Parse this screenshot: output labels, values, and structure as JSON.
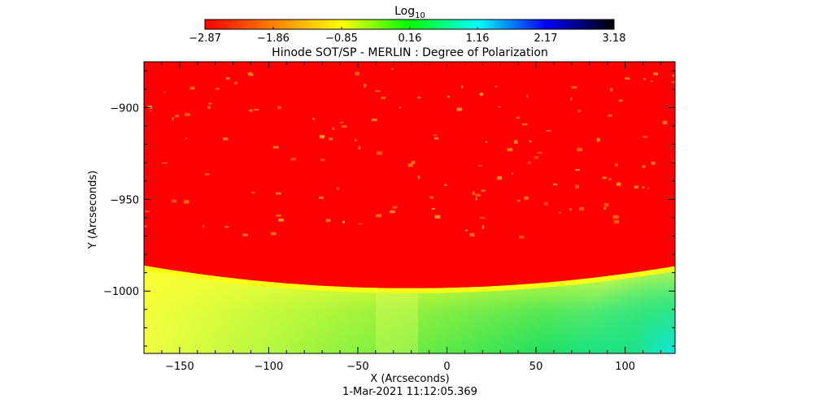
{
  "chart_data": {
    "type": "heatmap",
    "title": "Hinode SOT/SP - MERLIN : Degree of Polarization",
    "xlabel": "X (Arcseconds)",
    "ylabel": "Y (Arcseconds)",
    "timestamp": "1-Mar-2021 11:12:05.369",
    "xlim": [
      -170,
      128
    ],
    "ylim": [
      -1034,
      -875
    ],
    "x_ticks": [
      -150,
      -100,
      -50,
      0,
      50,
      100
    ],
    "x_tick_labels": [
      "−150",
      "−100",
      "−50",
      "0",
      "50",
      "100"
    ],
    "y_ticks": [
      -900,
      -950,
      -1000
    ],
    "y_tick_labels": [
      "−900",
      "−950",
      "−1000"
    ],
    "colorbar": {
      "title_base": "Log",
      "title_sub": "10",
      "range": [
        -2.87,
        3.18
      ],
      "tick_values": [
        -2.87,
        -1.86,
        -0.85,
        0.16,
        1.16,
        2.17,
        3.18
      ],
      "tick_labels": [
        "−2.87",
        "−1.86",
        "−0.85",
        "0.16",
        "1.16",
        "2.17",
        "3.18"
      ],
      "colors": [
        "#ff0000",
        "#ff8000",
        "#ffff00",
        "#00ff00",
        "#00ffff",
        "#0000ff",
        "#000000"
      ]
    },
    "regions": {
      "off_limb_color": "#ff0000",
      "limb_color": "#ffff10",
      "disk_colors": [
        "#f0ff40",
        "#b0f840",
        "#70ec40",
        "#20e060",
        "#10e8c0"
      ]
    }
  }
}
